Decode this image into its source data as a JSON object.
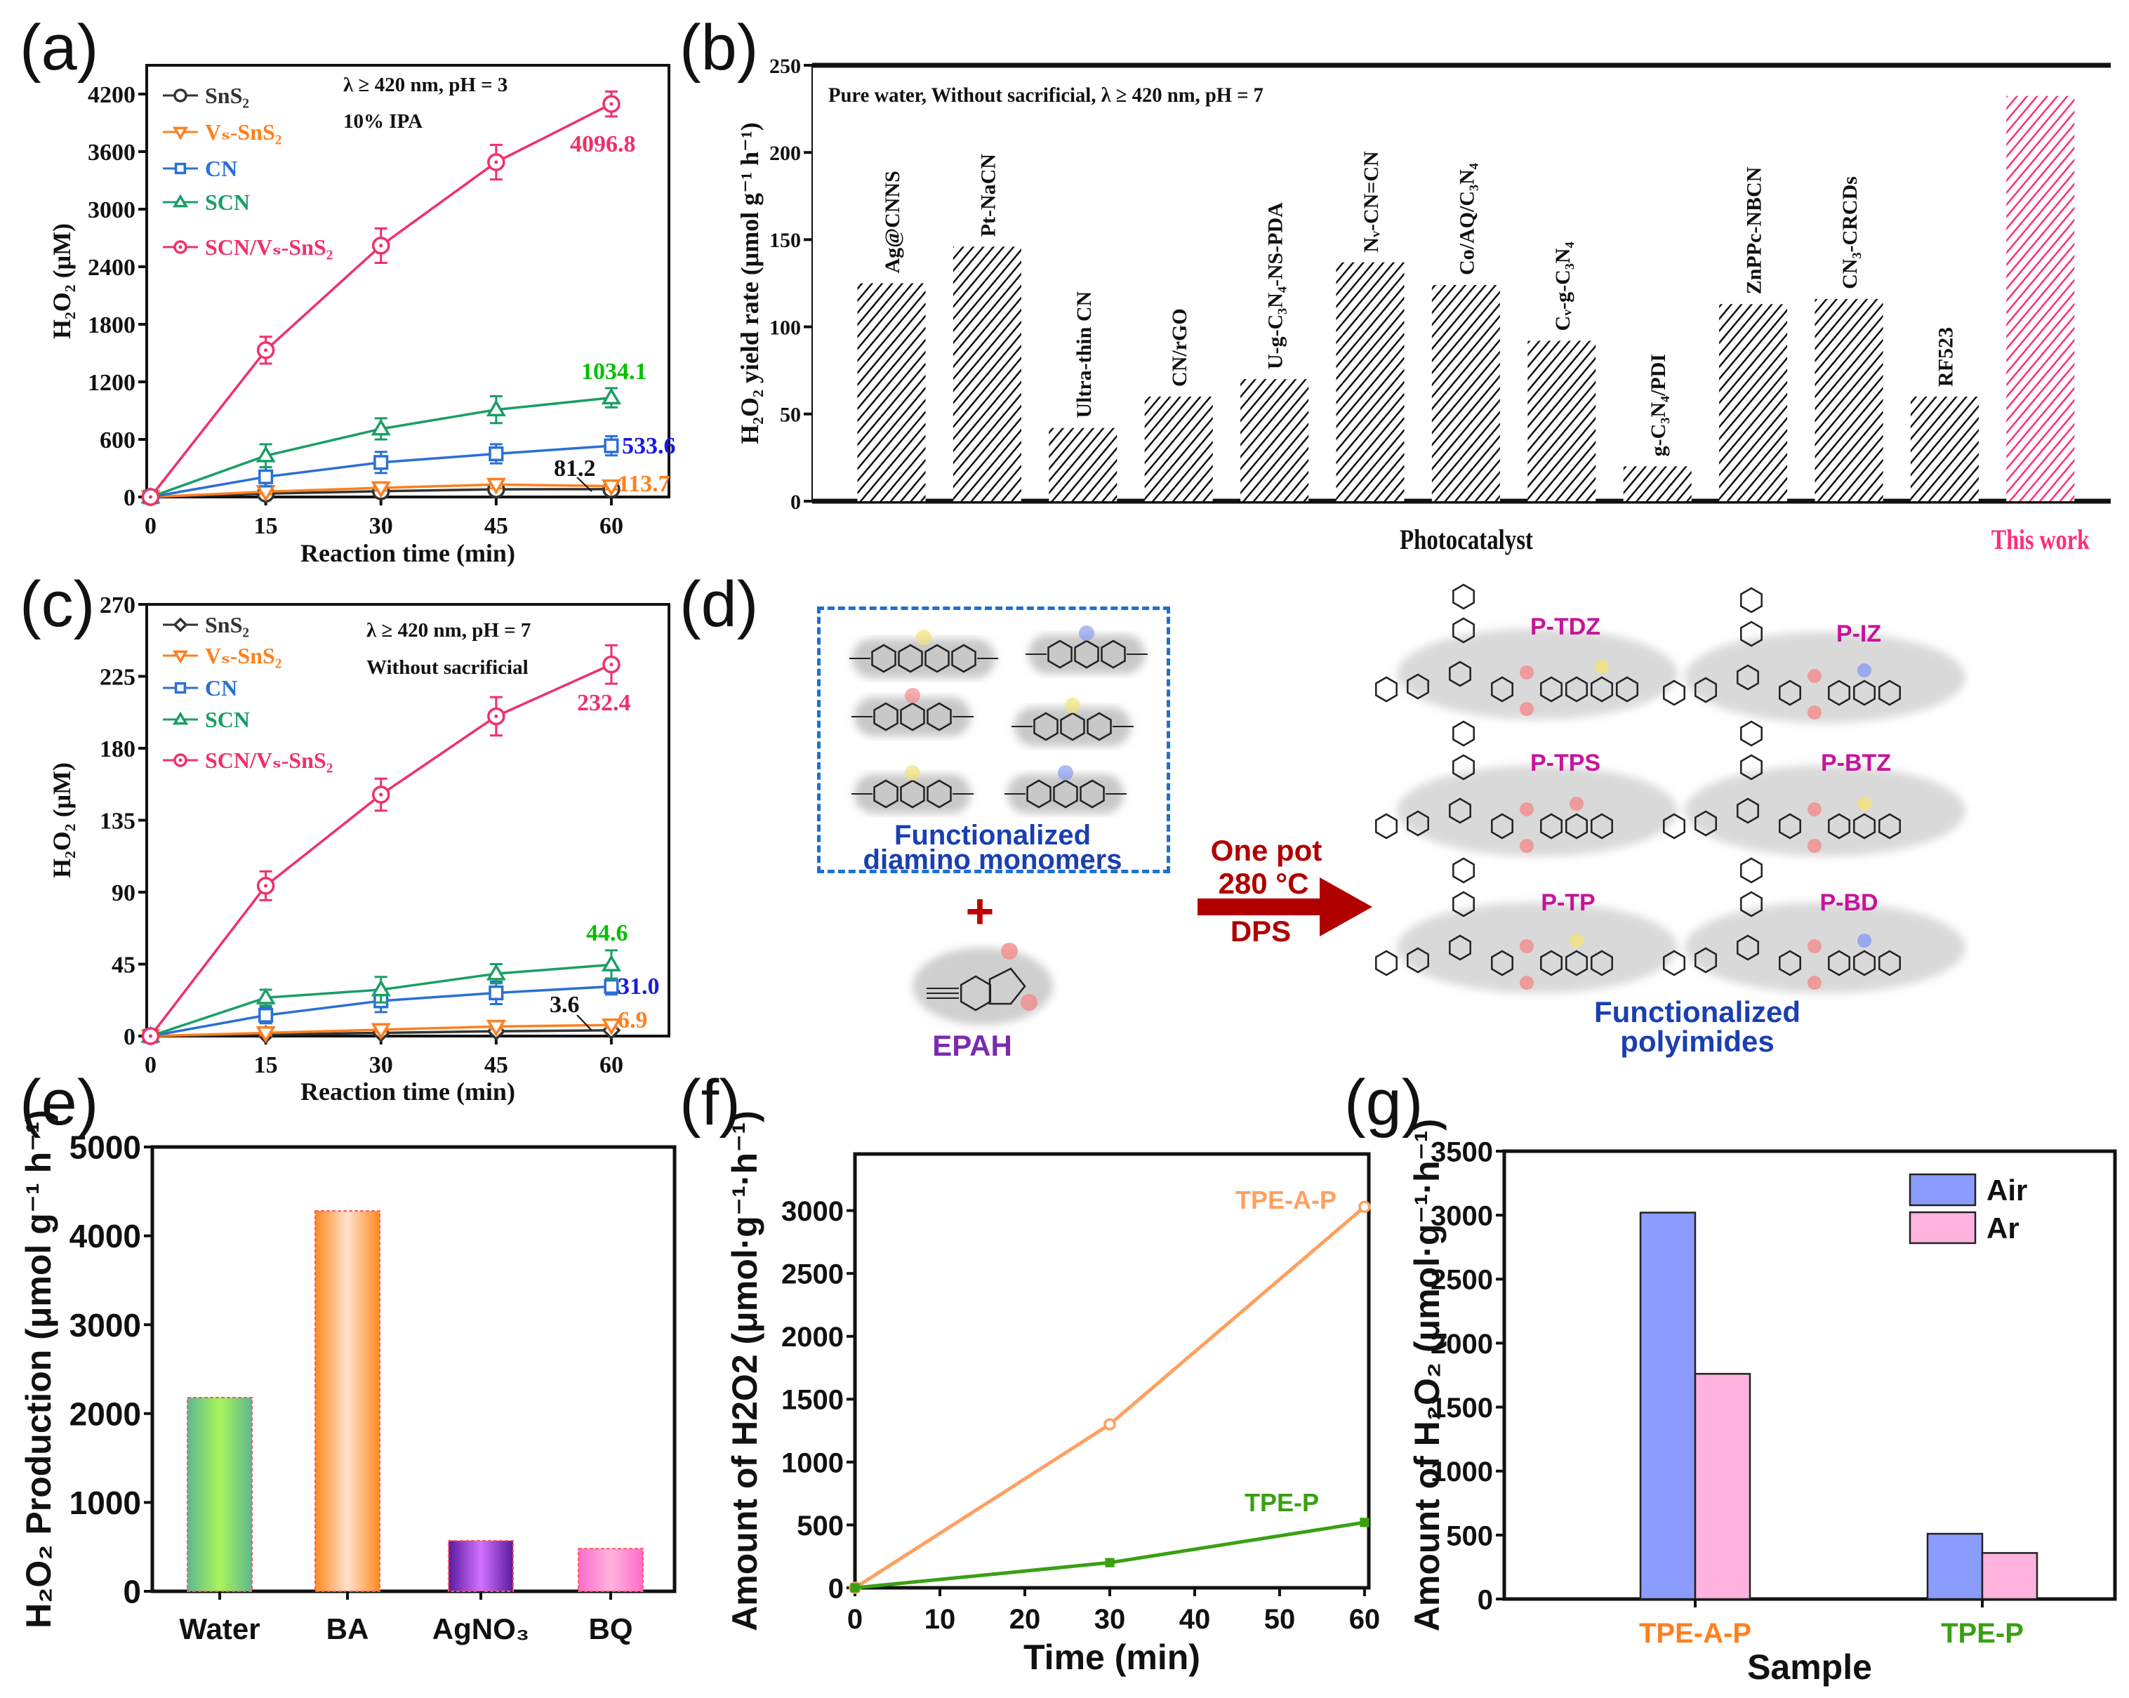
{
  "panel_labels": [
    "(a)",
    "(b)",
    "(c)",
    "(d)",
    "(e)",
    "(f)",
    "(g)"
  ],
  "chart_data": [
    {
      "panel": "(a)",
      "type": "line",
      "xlabel": "Reaction time (min)",
      "ylabel": "H₂O₂ (μM)",
      "xlim": [
        -0.5,
        67.5
      ],
      "ylim": [
        0,
        4500
      ],
      "xticks": [
        0,
        15,
        30,
        45,
        60
      ],
      "yticks": [
        0,
        600,
        1200,
        1800,
        2400,
        3000,
        3600,
        4200
      ],
      "conditions": [
        "λ ≥ 420 nm, pH = 3",
        "10%  IPA"
      ],
      "x": [
        0,
        15,
        30,
        45,
        60
      ],
      "series": [
        {
          "name": "SnS₂",
          "color": "#333333",
          "marker": "circle",
          "values": [
            0,
            35,
            60,
            80,
            81.2
          ],
          "errors": [
            0,
            20,
            25,
            25,
            25
          ]
        },
        {
          "name": "Vₛ-SnS₂",
          "color": "#ff7f1e",
          "marker": "tri-down",
          "values": [
            0,
            55,
            95,
            130,
            113.7
          ],
          "errors": [
            0,
            25,
            30,
            40,
            35
          ]
        },
        {
          "name": "CN",
          "color": "#2a6fd6",
          "marker": "square",
          "values": [
            0,
            210,
            360,
            450,
            533.6
          ],
          "errors": [
            0,
            100,
            110,
            100,
            100
          ]
        },
        {
          "name": "SCN",
          "color": "#1a9e66",
          "marker": "tri-up",
          "values": [
            0,
            430,
            710,
            910,
            1034.1
          ],
          "errors": [
            0,
            120,
            110,
            140,
            100
          ]
        },
        {
          "name": "SCN/Vₛ-SnS₂",
          "color": "#f0306a",
          "marker": "circle-dot",
          "values": [
            0,
            1530,
            2620,
            3490,
            4096.8
          ],
          "errors": [
            0,
            140,
            180,
            180,
            130
          ]
        }
      ],
      "annotations": [
        {
          "text": "4096.8",
          "color": "#f0306a"
        },
        {
          "text": "1034.1",
          "color": "#00c000"
        },
        {
          "text": "533.6",
          "color": "#1a1ae0"
        },
        {
          "text": "81.2",
          "color": "#111111"
        },
        {
          "text": "113.7",
          "color": "#ff7f1e"
        }
      ]
    },
    {
      "panel": "(b)",
      "type": "bar",
      "xlabel": "Photocatalyst",
      "ylabel": "H₂O₂ yield rate (μmol g⁻¹ h⁻¹)",
      "ylim": [
        0,
        250
      ],
      "yticks": [
        0,
        50,
        100,
        150,
        200,
        250
      ],
      "conditions": [
        "Pure water,  Without sacrificial,  λ ≥ 420 nm, pH = 7"
      ],
      "categories": [
        "Ag@CNNS",
        "Pt-NaCN",
        "Ultra-thin CN",
        "CN/rGO",
        "U-g-C₃N₄-NS-PDA",
        "Nᵥ-CN=CN",
        "Co/AQ/C₃N₄",
        "Cᵥ-g-C₃N₄",
        "g-C₃N₄/PDI",
        "ZnPPc-NBCN",
        "CN₃-CRCDs",
        "RF523",
        "This work"
      ],
      "values": [
        125,
        146,
        42,
        60,
        70,
        137,
        124,
        92,
        20,
        113,
        116,
        60,
        232.4
      ],
      "colors": {
        "reference": "#111111",
        "this_work": "#ff2d7a"
      }
    },
    {
      "panel": "(c)",
      "type": "line",
      "xlabel": "Reaction time (min)",
      "ylabel": "H₂O₂ (μM)",
      "xlim": [
        -0.5,
        67.5
      ],
      "ylim": [
        0,
        270
      ],
      "xticks": [
        0,
        15,
        30,
        45,
        60
      ],
      "yticks": [
        0,
        45,
        90,
        135,
        180,
        225,
        270
      ],
      "conditions": [
        "λ ≥ 420 nm, pH = 7",
        "Without sacrificial"
      ],
      "x": [
        0,
        15,
        30,
        45,
        60
      ],
      "series": [
        {
          "name": "SnS₂",
          "color": "#333333",
          "marker": "diamond",
          "values": [
            0,
            1,
            2,
            3,
            3.6
          ],
          "errors": [
            0,
            1,
            1,
            1,
            1
          ]
        },
        {
          "name": "Vₛ-SnS₂",
          "color": "#ff7f1e",
          "marker": "tri-down",
          "values": [
            0,
            2,
            4,
            6,
            6.9
          ],
          "errors": [
            0,
            1.5,
            1.5,
            1.5,
            1.5
          ]
        },
        {
          "name": "CN",
          "color": "#2a6fd6",
          "marker": "square",
          "values": [
            0,
            13,
            22,
            27,
            31.0
          ],
          "errors": [
            0,
            5,
            7,
            7,
            5
          ]
        },
        {
          "name": "SCN",
          "color": "#1a9e66",
          "marker": "tri-up",
          "values": [
            0,
            24,
            29,
            39,
            44.6
          ],
          "errors": [
            0,
            5,
            8,
            6,
            9
          ]
        },
        {
          "name": "SCN/Vₛ-SnS₂",
          "color": "#f0306a",
          "marker": "circle-dot",
          "values": [
            0,
            94,
            151,
            200,
            232.4
          ],
          "errors": [
            0,
            9,
            10,
            12,
            12
          ]
        }
      ],
      "annotations": [
        {
          "text": "232.4",
          "color": "#f0306a"
        },
        {
          "text": "44.6",
          "color": "#00c000"
        },
        {
          "text": "31.0",
          "color": "#1a1ae0"
        },
        {
          "text": "3.6",
          "color": "#111111"
        },
        {
          "text": "6.9",
          "color": "#ff7f1e"
        }
      ]
    },
    {
      "panel": "(e)",
      "type": "bar",
      "xlabel": "",
      "ylabel": "H₂O₂ Production (μmol g⁻¹ h⁻¹)",
      "ylim": [
        0,
        5000
      ],
      "yticks": [
        0,
        1000,
        2000,
        3000,
        4000,
        5000
      ],
      "categories": [
        "Water",
        "BA",
        "AgNO₃",
        "BQ"
      ],
      "values": [
        2180,
        4280,
        570,
        480
      ],
      "colors": [
        [
          "#5fb890",
          "#a8f45a"
        ],
        [
          "#ff8a1f",
          "#ffe2cc"
        ],
        [
          "#5a1a9e",
          "#cf72ff"
        ],
        [
          "#ff6ccc",
          "#ffb4de"
        ]
      ]
    },
    {
      "panel": "(f)",
      "type": "line",
      "xlabel": "Time (min)",
      "ylabel": "Amount of H2O2 (μmol·g⁻¹·h⁻¹)",
      "xlim": [
        0,
        60.5
      ],
      "ylim": [
        0,
        3450
      ],
      "xticks": [
        0,
        10,
        20,
        30,
        40,
        50,
        60
      ],
      "yticks": [
        0,
        500,
        1000,
        1500,
        2000,
        2500,
        3000
      ],
      "x": [
        0,
        30,
        60
      ],
      "series": [
        {
          "name": "TPE-A-P",
          "color": "#ffa060",
          "marker": "circle",
          "values": [
            0,
            1300,
            3030
          ]
        },
        {
          "name": "TPE-P",
          "color": "#3aa012",
          "marker": "square-filled",
          "values": [
            0,
            200,
            520
          ]
        }
      ]
    },
    {
      "panel": "(g)",
      "type": "bar",
      "xlabel": "Sample",
      "ylabel": "Amount of H₂O₂ (μmol·g⁻¹·h⁻¹)",
      "ylim": [
        0,
        3500
      ],
      "yticks": [
        0,
        500,
        1000,
        1500,
        2000,
        2500,
        3000,
        3500
      ],
      "categories": [
        "TPE-A-P",
        "TPE-P"
      ],
      "category_colors": [
        "#ff7f1e",
        "#3aa012"
      ],
      "series": [
        {
          "name": "Air",
          "color": "#8b9cff",
          "values": [
            3020,
            510
          ]
        },
        {
          "name": "Ar",
          "color": "#ffb3de",
          "values": [
            1760,
            360
          ]
        }
      ],
      "legend": "top-right"
    }
  ],
  "diagram_d": {
    "monomers_label": [
      "Functionalized",
      "diamino monomers"
    ],
    "plus": "+",
    "anhydride_label": "EPAH",
    "conditions": [
      "One pot",
      "280 °C",
      "DPS"
    ],
    "polymers": [
      "P-TDZ",
      "P-IZ",
      "P-TPS",
      "P-BTZ",
      "P-TP",
      "P-BD"
    ],
    "products_label": [
      "Functionalized",
      "polyimides"
    ],
    "colors": {
      "title_blue": "#1a3fb0",
      "polymer_magenta": "#c8139a",
      "arrow_red": "#b00000",
      "epah_purple": "#7a2bb0"
    }
  }
}
